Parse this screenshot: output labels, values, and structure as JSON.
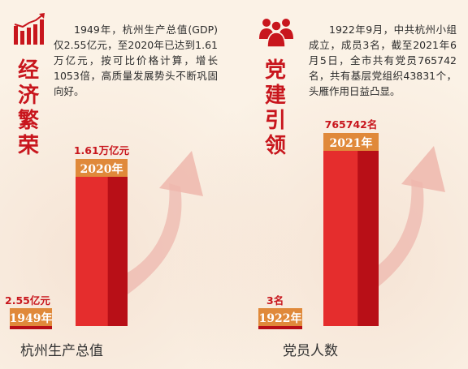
{
  "colors": {
    "accent": "#c8161d",
    "bar_dark": "#b80f17",
    "bar_light": "#e52d2d",
    "label_box": "#e0893a",
    "arrow": "#eeb7ad"
  },
  "panels": [
    {
      "icon": "bar-growth-icon",
      "title": "经济繁荣",
      "description": "1949年，杭州生产总值(GDP)仅2.55亿元，至2020年已达到1.61万亿元，按可比价格计算，增长1053倍，高质量发展势头不断巩固向好。",
      "footer": "杭州生产总值"
    },
    {
      "icon": "people-group-icon",
      "title": "党建引领",
      "description": "1922年9月，中共杭州小组成立，成员3名，截至2021年6月5日，全市共有党员765742名，共有基层党组织43831个，头雁作用日益凸显。",
      "footer": "党员人数"
    }
  ],
  "chart_data": [
    {
      "type": "bar",
      "categories": [
        "1949年",
        "2020年"
      ],
      "value_labels": [
        "2.55亿元",
        "1.61万亿元"
      ],
      "values_yuan_yi": [
        2.55,
        16100
      ],
      "title": "",
      "xlabel": "杭州生产总值",
      "ylabel": ""
    },
    {
      "type": "bar",
      "categories": [
        "1922年",
        "2021年"
      ],
      "value_labels": [
        "3名",
        "765742名"
      ],
      "values": [
        3,
        765742
      ],
      "title": "",
      "xlabel": "党员人数",
      "ylabel": ""
    }
  ]
}
